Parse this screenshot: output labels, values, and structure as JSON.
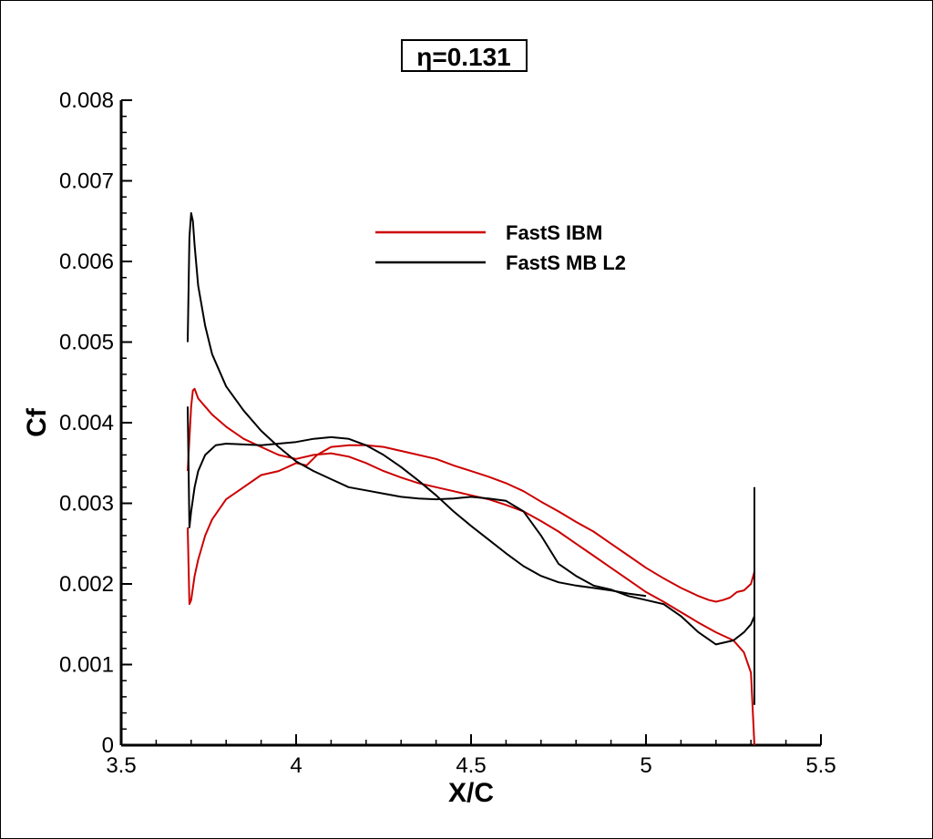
{
  "chart_data": {
    "type": "line",
    "title": "η=0.131",
    "xlabel": "X/C",
    "ylabel": "Cf",
    "xlim": [
      3.5,
      5.5
    ],
    "ylim": [
      0,
      0.008
    ],
    "x_ticks": [
      3.5,
      4,
      4.5,
      5,
      5.5
    ],
    "x_tick_labels": [
      "3.5",
      "4",
      "4.5",
      "5",
      "5.5"
    ],
    "y_ticks": [
      0,
      0.001,
      0.002,
      0.003,
      0.004,
      0.005,
      0.006,
      0.007,
      0.008
    ],
    "y_tick_labels": [
      "0",
      "0.001",
      "0.002",
      "0.003",
      "0.004",
      "0.005",
      "0.006",
      "0.007",
      "0.008"
    ],
    "grid": false,
    "legend_position": "upper-center",
    "series": [
      {
        "name": "FastS IBM",
        "color": "#cc0000",
        "segments": [
          {
            "x": [
              3.69,
              3.695,
              3.7,
              3.71,
              3.72,
              3.74,
              3.76,
              3.8,
              3.85,
              3.9,
              3.95,
              4.0,
              4.03,
              4.06,
              4.1,
              4.15,
              4.2,
              4.25,
              4.3,
              4.35,
              4.4,
              4.45,
              4.5,
              4.55,
              4.6,
              4.65,
              4.7,
              4.75,
              4.8,
              4.85,
              4.9,
              4.95,
              5.0,
              5.05,
              5.1,
              5.15,
              5.18,
              5.2,
              5.22,
              5.24,
              5.26,
              5.28,
              5.3,
              5.31
            ],
            "y": [
              0.0027,
              0.00175,
              0.0018,
              0.0021,
              0.0023,
              0.0026,
              0.0028,
              0.00305,
              0.0032,
              0.00335,
              0.0034,
              0.0035,
              0.00347,
              0.0036,
              0.0037,
              0.00372,
              0.00372,
              0.0037,
              0.00365,
              0.0036,
              0.00355,
              0.00347,
              0.0034,
              0.00333,
              0.00325,
              0.00315,
              0.00302,
              0.0029,
              0.00277,
              0.00265,
              0.0025,
              0.00235,
              0.0022,
              0.00207,
              0.00195,
              0.00185,
              0.0018,
              0.00178,
              0.0018,
              0.00183,
              0.0019,
              0.00192,
              0.002,
              0.00215
            ]
          },
          {
            "x": [
              3.69,
              3.695,
              3.7,
              3.705,
              3.71,
              3.72,
              3.74,
              3.76,
              3.8,
              3.85,
              3.9,
              3.95,
              4.0,
              4.05,
              4.1,
              4.15,
              4.2,
              4.25,
              4.3,
              4.35,
              4.4,
              4.45,
              4.5,
              4.55,
              4.6,
              4.65,
              4.7,
              4.75,
              4.8,
              4.85,
              4.9,
              4.95,
              5.0,
              5.05,
              5.1,
              5.15,
              5.2,
              5.25,
              5.28,
              5.3,
              5.31
            ],
            "y": [
              0.0034,
              0.0038,
              0.0042,
              0.0044,
              0.00442,
              0.0043,
              0.0042,
              0.0041,
              0.00395,
              0.0038,
              0.0037,
              0.0036,
              0.00355,
              0.0036,
              0.00362,
              0.00358,
              0.0035,
              0.0034,
              0.00332,
              0.00325,
              0.0032,
              0.00315,
              0.0031,
              0.00305,
              0.00298,
              0.0029,
              0.00278,
              0.00265,
              0.0025,
              0.00235,
              0.0022,
              0.00205,
              0.0019,
              0.00178,
              0.00165,
              0.00152,
              0.0014,
              0.0013,
              0.00115,
              0.0009,
              0.0
            ]
          }
        ]
      },
      {
        "name": "FastS MB L2",
        "color": "#000000",
        "segments": [
          {
            "x": [
              3.69,
              3.695,
              3.7,
              3.71,
              3.72,
              3.74,
              3.77,
              3.8,
              3.85,
              3.9,
              3.95,
              4.0,
              4.05,
              4.1,
              4.15,
              4.2,
              4.25,
              4.3,
              4.35,
              4.4,
              4.45,
              4.5,
              4.55,
              4.6,
              4.65,
              4.7,
              4.75,
              4.8,
              4.85,
              4.9,
              4.95,
              5.0
            ],
            "y": [
              0.0042,
              0.0027,
              0.0029,
              0.0032,
              0.0034,
              0.0036,
              0.00372,
              0.00374,
              0.00373,
              0.00372,
              0.00374,
              0.00376,
              0.0038,
              0.00382,
              0.0038,
              0.00372,
              0.0036,
              0.00345,
              0.00328,
              0.0031,
              0.0029,
              0.00272,
              0.00255,
              0.00238,
              0.00222,
              0.0021,
              0.00202,
              0.00198,
              0.00195,
              0.00192,
              0.00188,
              0.00185
            ]
          },
          {
            "x": [
              3.69,
              3.695,
              3.7,
              3.705,
              3.71,
              3.72,
              3.74,
              3.76,
              3.8,
              3.85,
              3.9,
              3.95,
              4.0,
              4.05,
              4.1,
              4.15,
              4.2,
              4.25,
              4.3,
              4.35,
              4.4,
              4.45,
              4.5,
              4.55,
              4.6,
              4.65,
              4.7,
              4.75,
              4.8,
              4.85,
              4.9,
              4.95,
              5.0,
              5.05,
              5.1,
              5.15,
              5.2,
              5.25,
              5.28,
              5.3,
              5.31
            ],
            "y": [
              0.005,
              0.0063,
              0.0066,
              0.0065,
              0.0062,
              0.0057,
              0.0052,
              0.00485,
              0.00445,
              0.00415,
              0.0039,
              0.0037,
              0.00352,
              0.0034,
              0.0033,
              0.0032,
              0.00316,
              0.00312,
              0.00308,
              0.00306,
              0.00305,
              0.00306,
              0.00308,
              0.00306,
              0.00303,
              0.0029,
              0.0026,
              0.00225,
              0.0021,
              0.00198,
              0.00193,
              0.00185,
              0.0018,
              0.00175,
              0.0016,
              0.0014,
              0.00125,
              0.0013,
              0.0014,
              0.0015,
              0.0016
            ]
          },
          {
            "x": [
              5.31,
              5.31,
              5.31
            ],
            "y": [
              0.0032,
              0.001,
              0.0005
            ]
          }
        ]
      }
    ]
  }
}
